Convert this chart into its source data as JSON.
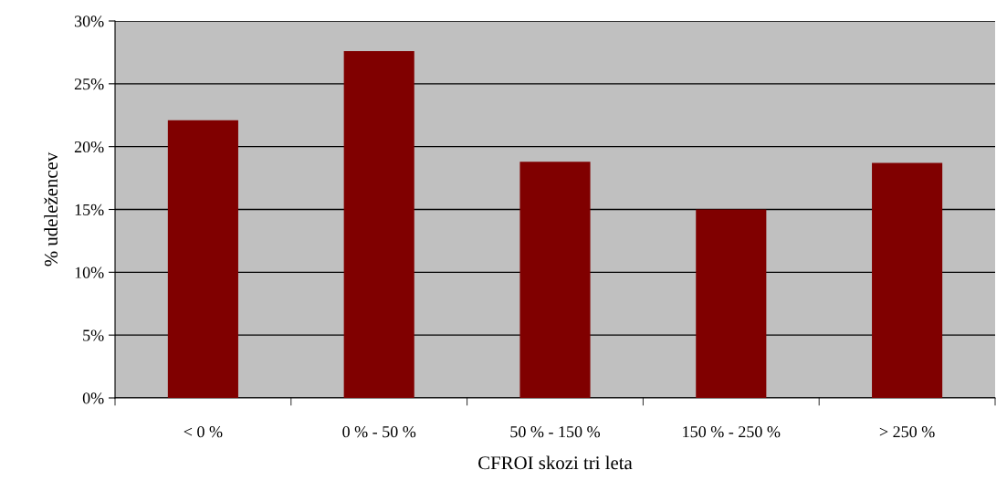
{
  "chart_data": {
    "type": "bar",
    "xlabel": "CFROI skozi tri leta",
    "ylabel": "% udeležencev",
    "categories": [
      "< 0 %",
      "0 % - 50 %",
      "50 % - 150 %",
      "150 % - 250 %",
      "> 250 %"
    ],
    "values": [
      22.1,
      27.6,
      18.8,
      15.0,
      18.7
    ],
    "color": "#800000",
    "ylim": [
      0,
      30
    ],
    "yticks": [
      {
        "value": 0,
        "label": "0%"
      },
      {
        "value": 5,
        "label": "5%"
      },
      {
        "value": 10,
        "label": "10%"
      },
      {
        "value": 15,
        "label": "15%"
      },
      {
        "value": 20,
        "label": "20%"
      },
      {
        "value": 25,
        "label": "25%"
      },
      {
        "value": 30,
        "label": "30%"
      }
    ],
    "grid": "y"
  }
}
